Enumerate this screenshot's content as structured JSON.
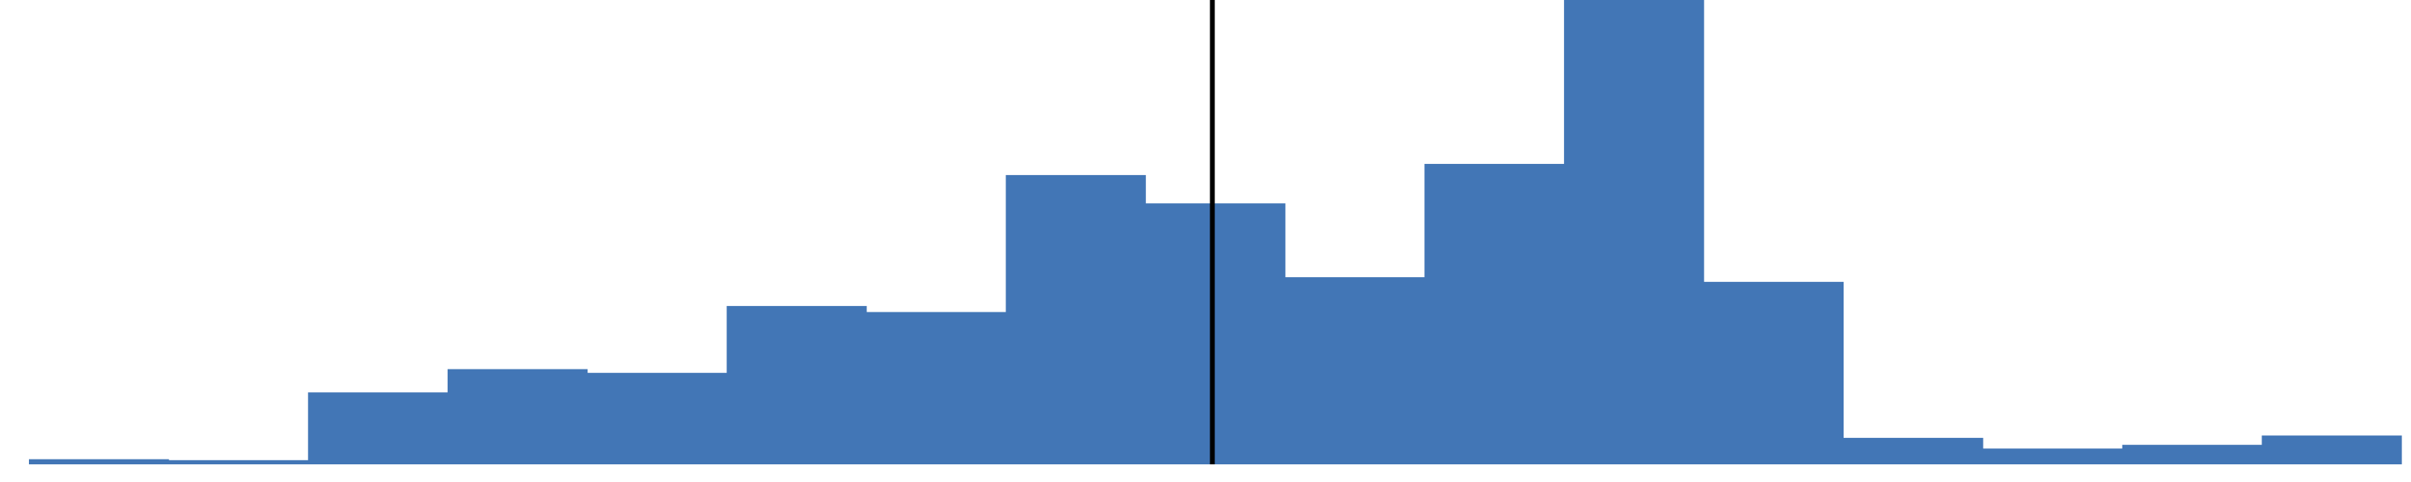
{
  "chart_data": {
    "type": "bar",
    "title": "",
    "xlabel": "",
    "ylabel": "",
    "ylim": [
      0,
      100
    ],
    "values": [
      1.1,
      0.9,
      15.5,
      20.5,
      19.7,
      34.1,
      32.8,
      62.3,
      56.2,
      40.3,
      64.7,
      100.0,
      39.3,
      5.7,
      3.4,
      4.2,
      6.2
    ],
    "series_color": "#4276b6",
    "reference_line": {
      "category_index": 8,
      "position": 0.48,
      "color": "#000000"
    }
  }
}
